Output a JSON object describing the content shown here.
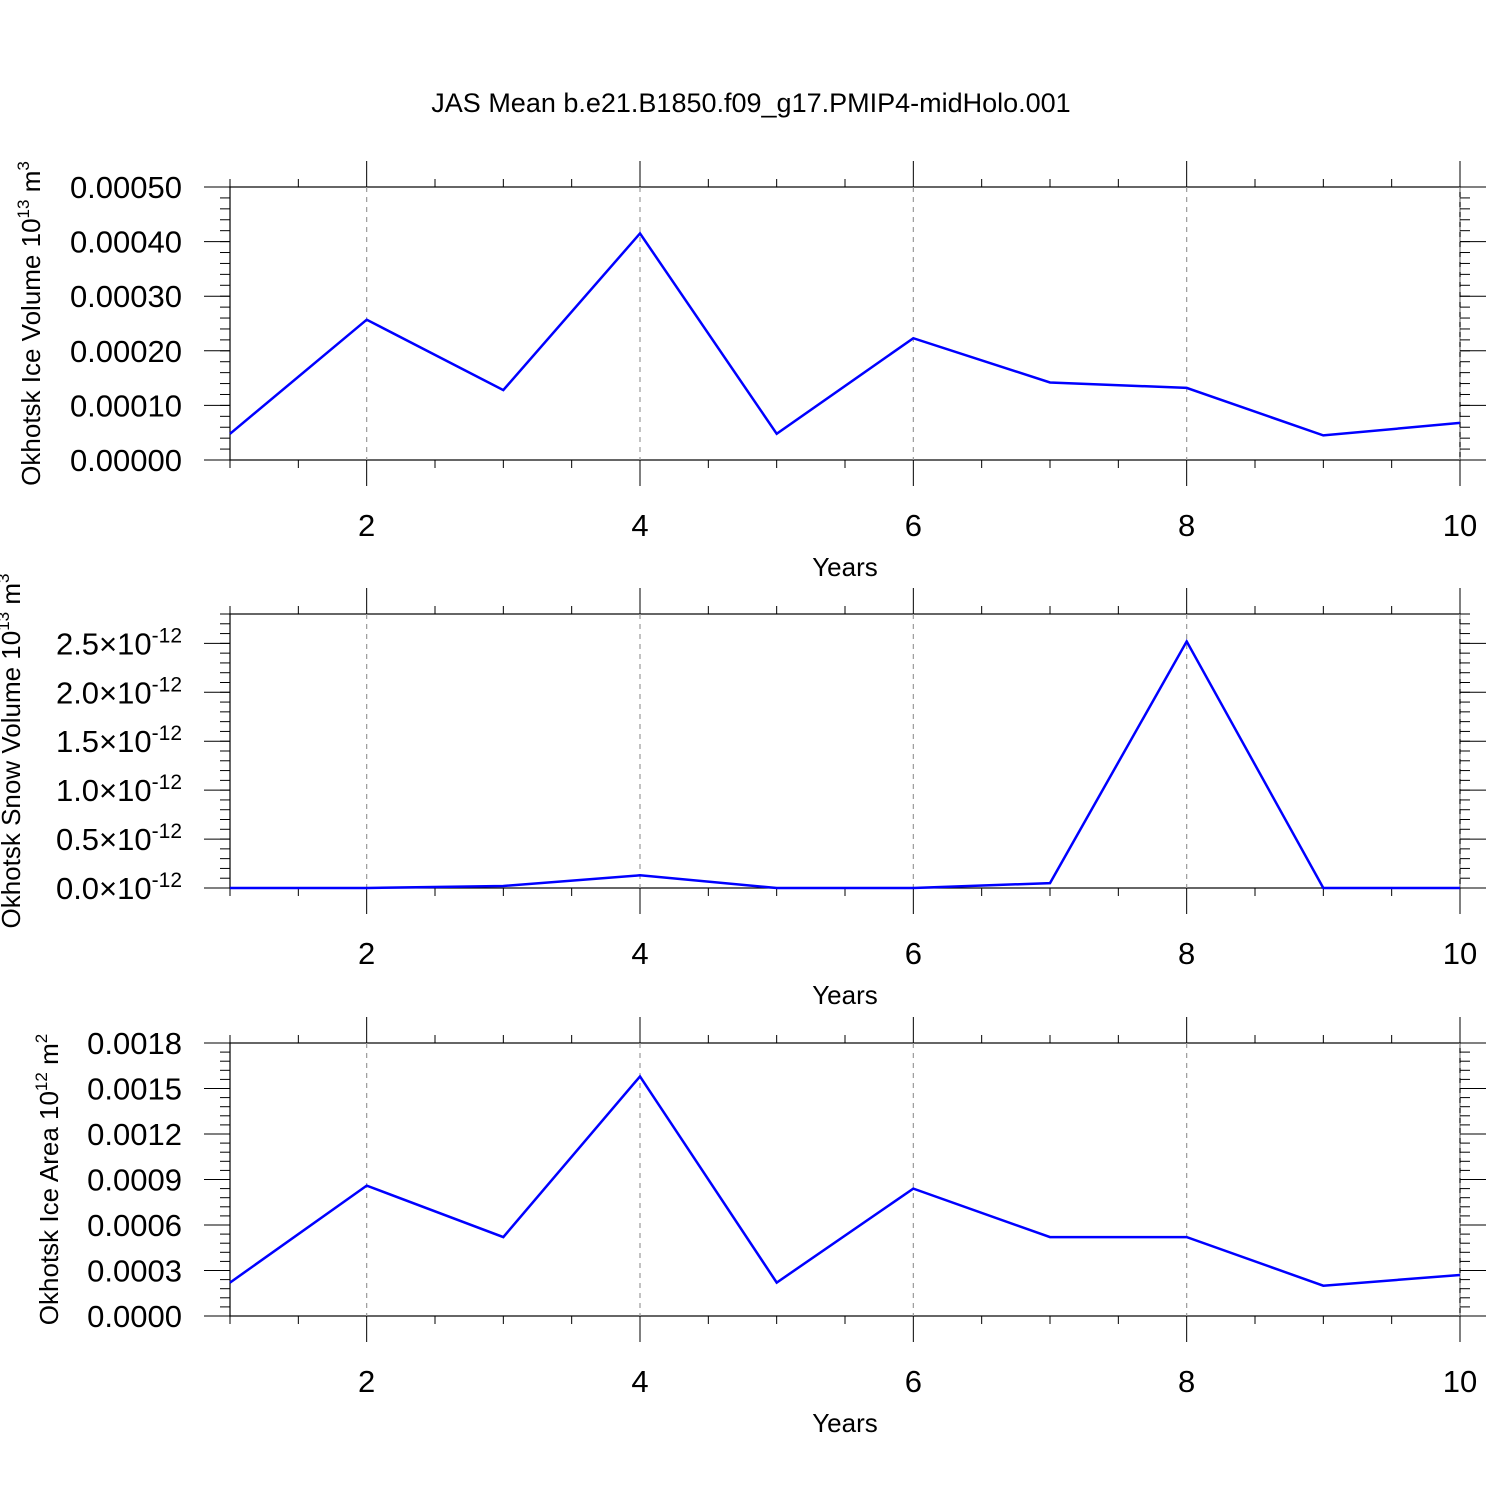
{
  "title": "JAS Mean b.e21.B1850.f09_g17.PMIP4-midHolo.001",
  "chart_data": [
    {
      "type": "line",
      "xlabel": "Years",
      "ylabel": {
        "prefix": "Okhotsk Ice Volume 10",
        "exp": "13",
        "unit": " m",
        "unit_exp": "3"
      },
      "xlim": [
        1,
        10
      ],
      "ylim": [
        0,
        0.0005
      ],
      "x_ticks": [
        2,
        4,
        6,
        8,
        10
      ],
      "x_tick_labels": [
        "2",
        "4",
        "6",
        "8",
        "10"
      ],
      "y_ticks": [
        0,
        0.0001,
        0.0002,
        0.0003,
        0.0004,
        0.0005
      ],
      "y_tick_labels": [
        {
          "text": "0.00000"
        },
        {
          "text": "0.00010"
        },
        {
          "text": "0.00020"
        },
        {
          "text": "0.00030"
        },
        {
          "text": "0.00040"
        },
        {
          "text": "0.00050"
        }
      ],
      "series": [
        {
          "color": "#0000ff",
          "x": [
            1,
            2,
            3,
            4,
            5,
            6,
            7,
            8,
            9,
            10
          ],
          "y": [
            4.8e-05,
            0.000257,
            0.000128,
            0.000415,
            4.8e-05,
            0.000223,
            0.000142,
            0.000132,
            4.5e-05,
            6.8e-05
          ]
        }
      ],
      "grid": "vertical dashed at major x ticks"
    },
    {
      "type": "line",
      "xlabel": "Years",
      "ylabel": {
        "prefix": "Okhotsk Snow Volume 10",
        "exp": "13",
        "unit": " m",
        "unit_exp": "3"
      },
      "xlim": [
        1,
        10
      ],
      "ylim": [
        0,
        2.8
      ],
      "x_ticks": [
        2,
        4,
        6,
        8,
        10
      ],
      "x_tick_labels": [
        "2",
        "4",
        "6",
        "8",
        "10"
      ],
      "y_ticks": [
        0,
        0.5,
        1.0,
        1.5,
        2.0,
        2.5
      ],
      "y_tick_labels": [
        {
          "text": "0.0×10",
          "exp": "-12"
        },
        {
          "text": "0.5×10",
          "exp": "-12"
        },
        {
          "text": "1.0×10",
          "exp": "-12"
        },
        {
          "text": "1.5×10",
          "exp": "-12"
        },
        {
          "text": "2.0×10",
          "exp": "-12"
        },
        {
          "text": "2.5×10",
          "exp": "-12"
        }
      ],
      "series": [
        {
          "color": "#0000ff",
          "x": [
            1,
            2,
            3,
            4,
            5,
            6,
            7,
            8,
            9,
            10
          ],
          "y": [
            0.0,
            0.0,
            0.02,
            0.13,
            0.0,
            0.0,
            0.05,
            2.52,
            0.0,
            0.0
          ]
        }
      ],
      "grid": "vertical dashed at major x ticks"
    },
    {
      "type": "line",
      "xlabel": "Years",
      "ylabel": {
        "prefix": "Okhotsk Ice Area 10",
        "exp": "12",
        "unit": " m",
        "unit_exp": "2"
      },
      "xlim": [
        1,
        10
      ],
      "ylim": [
        0,
        0.0018
      ],
      "x_ticks": [
        2,
        4,
        6,
        8,
        10
      ],
      "x_tick_labels": [
        "2",
        "4",
        "6",
        "8",
        "10"
      ],
      "y_ticks": [
        0,
        0.0003,
        0.0006,
        0.0009,
        0.0012,
        0.0015,
        0.0018
      ],
      "y_tick_labels": [
        {
          "text": "0.0000"
        },
        {
          "text": "0.0003"
        },
        {
          "text": "0.0006"
        },
        {
          "text": "0.0009"
        },
        {
          "text": "0.0012"
        },
        {
          "text": "0.0015"
        },
        {
          "text": "0.0018"
        }
      ],
      "series": [
        {
          "color": "#0000ff",
          "x": [
            1,
            2,
            3,
            4,
            5,
            6,
            7,
            8,
            9,
            10
          ],
          "y": [
            0.00022,
            0.00086,
            0.00052,
            0.00158,
            0.00022,
            0.00084,
            0.00052,
            0.00052,
            0.0002,
            0.00027
          ]
        }
      ],
      "grid": "vertical dashed at major x ticks"
    }
  ]
}
